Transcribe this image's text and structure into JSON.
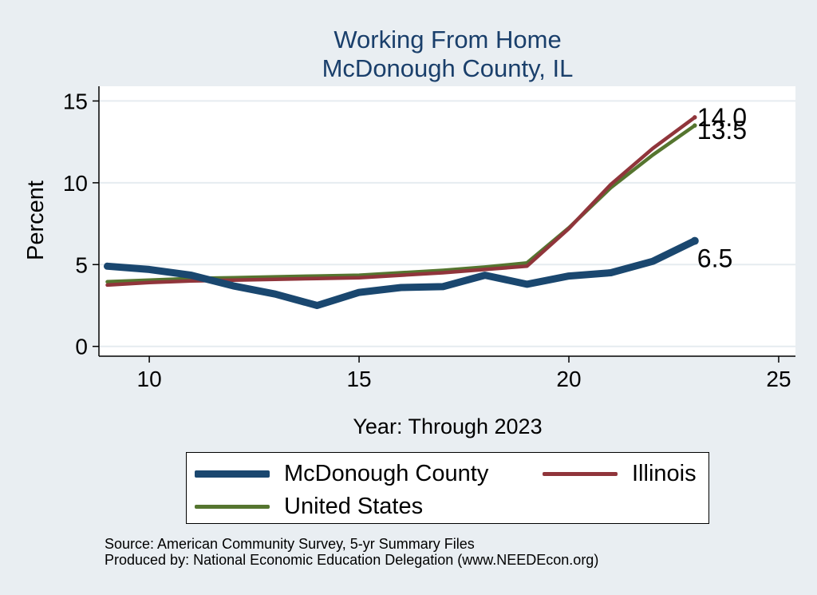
{
  "chart_data": {
    "type": "line",
    "title": [
      "Working From Home",
      "McDonough County, IL"
    ],
    "xlabel": "Year: Through 2023",
    "ylabel": "Percent",
    "xlim": [
      8.8,
      25.4
    ],
    "ylim": [
      -0.6,
      15.9
    ],
    "xticks": [
      10,
      15,
      20,
      25
    ],
    "yticks": [
      0,
      5,
      10,
      15
    ],
    "grid": true,
    "legend_position": "bottom",
    "x": [
      9,
      10,
      11,
      12,
      13,
      14,
      15,
      16,
      17,
      18,
      19,
      20,
      21,
      22,
      23
    ],
    "series": [
      {
        "name": "McDonough County",
        "color": "#1a476f",
        "values": [
          4.9,
          4.7,
          4.35,
          3.7,
          3.2,
          2.5,
          3.3,
          3.6,
          3.65,
          4.35,
          3.8,
          4.3,
          4.5,
          5.2,
          6.45
        ],
        "end_label": "6.5"
      },
      {
        "name": "Illinois",
        "color": "#90353b",
        "values": [
          3.75,
          3.9,
          4.0,
          4.05,
          4.1,
          4.15,
          4.2,
          4.35,
          4.5,
          4.7,
          4.9,
          7.2,
          9.9,
          12.1,
          14.0
        ],
        "end_label": "14.0"
      },
      {
        "name": "United States",
        "color": "#55752f",
        "values": [
          3.95,
          4.05,
          4.15,
          4.2,
          4.25,
          4.3,
          4.35,
          4.5,
          4.65,
          4.85,
          5.1,
          7.25,
          9.7,
          11.7,
          13.5
        ],
        "end_label": "13.5"
      }
    ],
    "source_lines": [
      "Source: American Community Survey, 5-yr Summary Files",
      "Produced by: National Economic Education Delegation (www.NEEDEcon.org)"
    ]
  }
}
